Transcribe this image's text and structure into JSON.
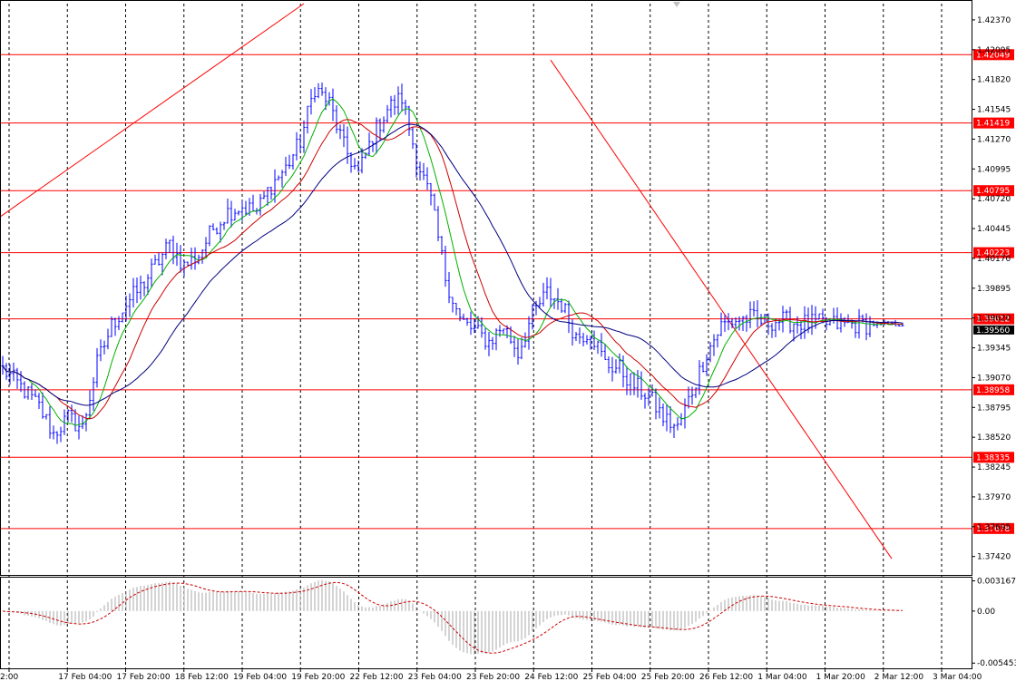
{
  "chart_data": {
    "type": "candlestick",
    "symbol_timeframe": "",
    "price_axis": {
      "ylim": [
        1.3725,
        1.4252
      ],
      "tick_labels": [
        "1.42370",
        "1.42095",
        "1.41820",
        "1.41545",
        "1.41270",
        "1.40995",
        "1.40720",
        "1.40445",
        "1.40170",
        "1.39895",
        "1.39620",
        "1.39345",
        "1.39070",
        "1.38795",
        "1.38520",
        "1.38245",
        "1.37970",
        "1.37695",
        "1.37420"
      ],
      "tick_values": [
        1.4237,
        1.42095,
        1.4182,
        1.41545,
        1.4127,
        1.40995,
        1.4072,
        1.40445,
        1.4017,
        1.39895,
        1.3962,
        1.39345,
        1.3907,
        1.38795,
        1.3852,
        1.38245,
        1.3797,
        1.37695,
        1.3742
      ]
    },
    "time_axis": {
      "tick_labels": [
        "2:00",
        "17 Feb 04:00",
        "17 Feb 20:00",
        "18 Feb 12:00",
        "19 Feb 04:00",
        "19 Feb 20:00",
        "22 Feb 12:00",
        "23 Feb 04:00",
        "23 Feb 20:00",
        "24 Feb 12:00",
        "25 Feb 04:00",
        "25 Feb 20:00",
        "26 Feb 12:00",
        "1 Mar 04:00",
        "1 Mar 20:00",
        "2 Mar 12:00",
        "3 Mar 04:00"
      ]
    },
    "horizontal_levels": [
      {
        "label": "1.42049",
        "value": 1.42049
      },
      {
        "label": "1.41419",
        "value": 1.41419
      },
      {
        "label": "1.40795",
        "value": 1.40795
      },
      {
        "label": "1.40223",
        "value": 1.40223
      },
      {
        "label": "1.39612",
        "value": 1.39612
      },
      {
        "label": "1.38958",
        "value": 1.38958
      },
      {
        "label": "1.38335",
        "value": 1.38335
      },
      {
        "label": "1.37678",
        "value": 1.37678
      }
    ],
    "current_price_label": "1.39560",
    "close_path": {
      "bar_index": [
        0,
        6,
        10,
        14,
        18,
        22,
        26,
        30,
        34,
        38,
        42,
        46,
        50,
        54,
        58,
        62,
        66,
        70,
        74,
        78,
        82,
        86,
        90,
        94,
        98,
        102,
        106,
        110,
        114,
        118,
        122,
        126,
        130,
        134,
        138,
        142,
        146,
        150,
        154,
        158,
        162,
        166,
        170,
        174,
        178,
        182,
        186,
        190,
        194,
        198,
        202,
        206,
        210,
        214,
        218,
        222,
        226,
        230,
        234,
        238,
        241,
        244,
        247
      ],
      "close": [
        1.3915,
        1.3895,
        1.388,
        1.3855,
        1.387,
        1.386,
        1.392,
        1.3955,
        1.3975,
        1.399,
        1.401,
        1.403,
        1.401,
        1.402,
        1.4045,
        1.406,
        1.4065,
        1.406,
        1.4085,
        1.41,
        1.4125,
        1.4175,
        1.416,
        1.412,
        1.4095,
        1.413,
        1.4155,
        1.4165,
        1.411,
        1.407,
        1.4,
        1.396,
        1.395,
        1.394,
        1.3955,
        1.393,
        1.3965,
        1.3985,
        1.3975,
        1.3945,
        1.395,
        1.392,
        1.3915,
        1.39,
        1.389,
        1.387,
        1.386,
        1.3895,
        1.393,
        1.3955,
        1.396,
        1.3962,
        1.3958,
        1.396,
        1.3958,
        1.3957,
        1.3957,
        1.3956,
        1.3956,
        1.3956,
        1.3956,
        1.3956,
        1.3956
      ]
    },
    "trendlines": [
      {
        "start": [
          -3,
          1.405
        ],
        "end": [
          83,
          1.4252
        ]
      },
      {
        "start": [
          151,
          1.42
        ],
        "end": [
          245,
          1.374
        ]
      }
    ],
    "moving_averages": [
      {
        "period": 8,
        "color": "#00b000"
      },
      {
        "period": 16,
        "color": "#cc0000"
      },
      {
        "period": 32,
        "color": "#000080"
      }
    ],
    "macd": {
      "tick_labels": [
        "0.003167",
        "0.00",
        "-0.005453"
      ],
      "tick_values": [
        0.003167,
        0.0,
        -0.005453
      ],
      "ylim": [
        -0.006,
        0.0036
      ],
      "histogram_color": "#a8a8a8",
      "signal_color": "#cc0000"
    },
    "colors": {
      "bar": "#0000ff",
      "level": "#ff0000",
      "label_bg": "#ff0000",
      "current_price_bg": "#000000"
    }
  }
}
